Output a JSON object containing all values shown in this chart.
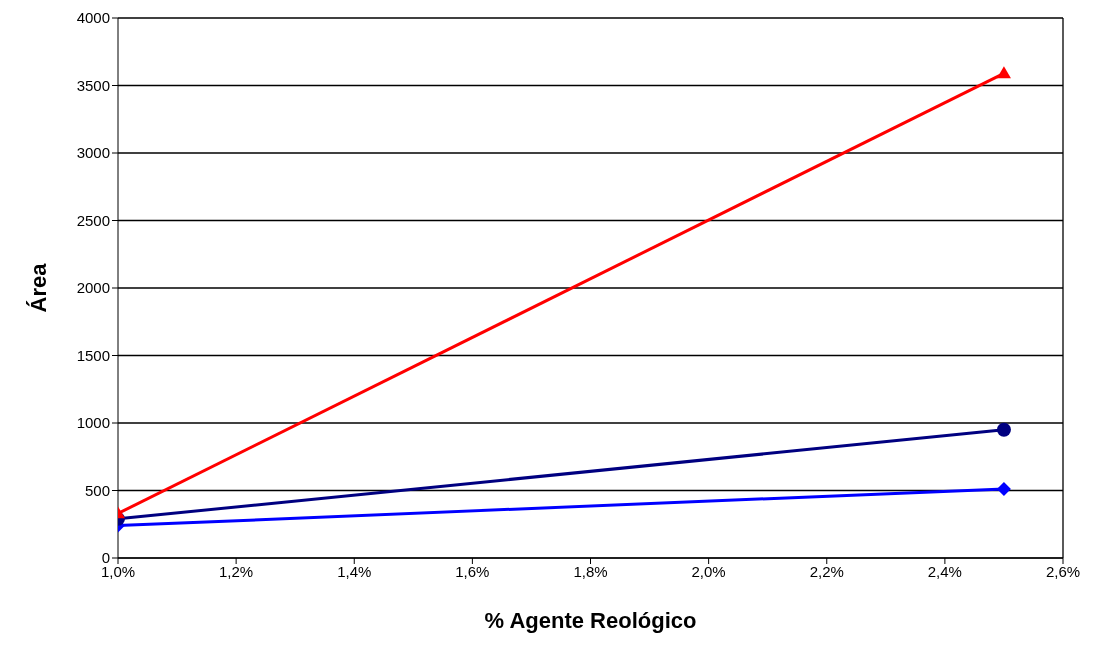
{
  "chart_data": {
    "type": "line",
    "xlabel": "% Agente Reológico",
    "ylabel": "Área",
    "x": [
      1.0,
      2.5
    ],
    "series": [
      {
        "color": "#ff0000",
        "marker": "triangle",
        "values": [
          330,
          3590
        ]
      },
      {
        "color": "#000080",
        "marker": "circle",
        "values": [
          290,
          950
        ]
      },
      {
        "color": "#0000ff",
        "marker": "diamond",
        "values": [
          240,
          512
        ]
      }
    ],
    "xlim": [
      1.0,
      2.6
    ],
    "xticks": [
      {
        "value": 1.0,
        "label": "1,0%"
      },
      {
        "value": 1.2,
        "label": "1,2%"
      },
      {
        "value": 1.4,
        "label": "1,4%"
      },
      {
        "value": 1.6,
        "label": "1,6%"
      },
      {
        "value": 1.8,
        "label": "1,8%"
      },
      {
        "value": 2.0,
        "label": "2,0%"
      },
      {
        "value": 2.2,
        "label": "2,2%"
      },
      {
        "value": 2.4,
        "label": "2,4%"
      },
      {
        "value": 2.6,
        "label": "2,6%"
      }
    ],
    "ylim": [
      0,
      4000
    ],
    "yticks": [
      0,
      500,
      1000,
      1500,
      2000,
      2500,
      3000,
      3500,
      4000
    ],
    "grid": "y",
    "legend": false,
    "line_style": "solid"
  }
}
